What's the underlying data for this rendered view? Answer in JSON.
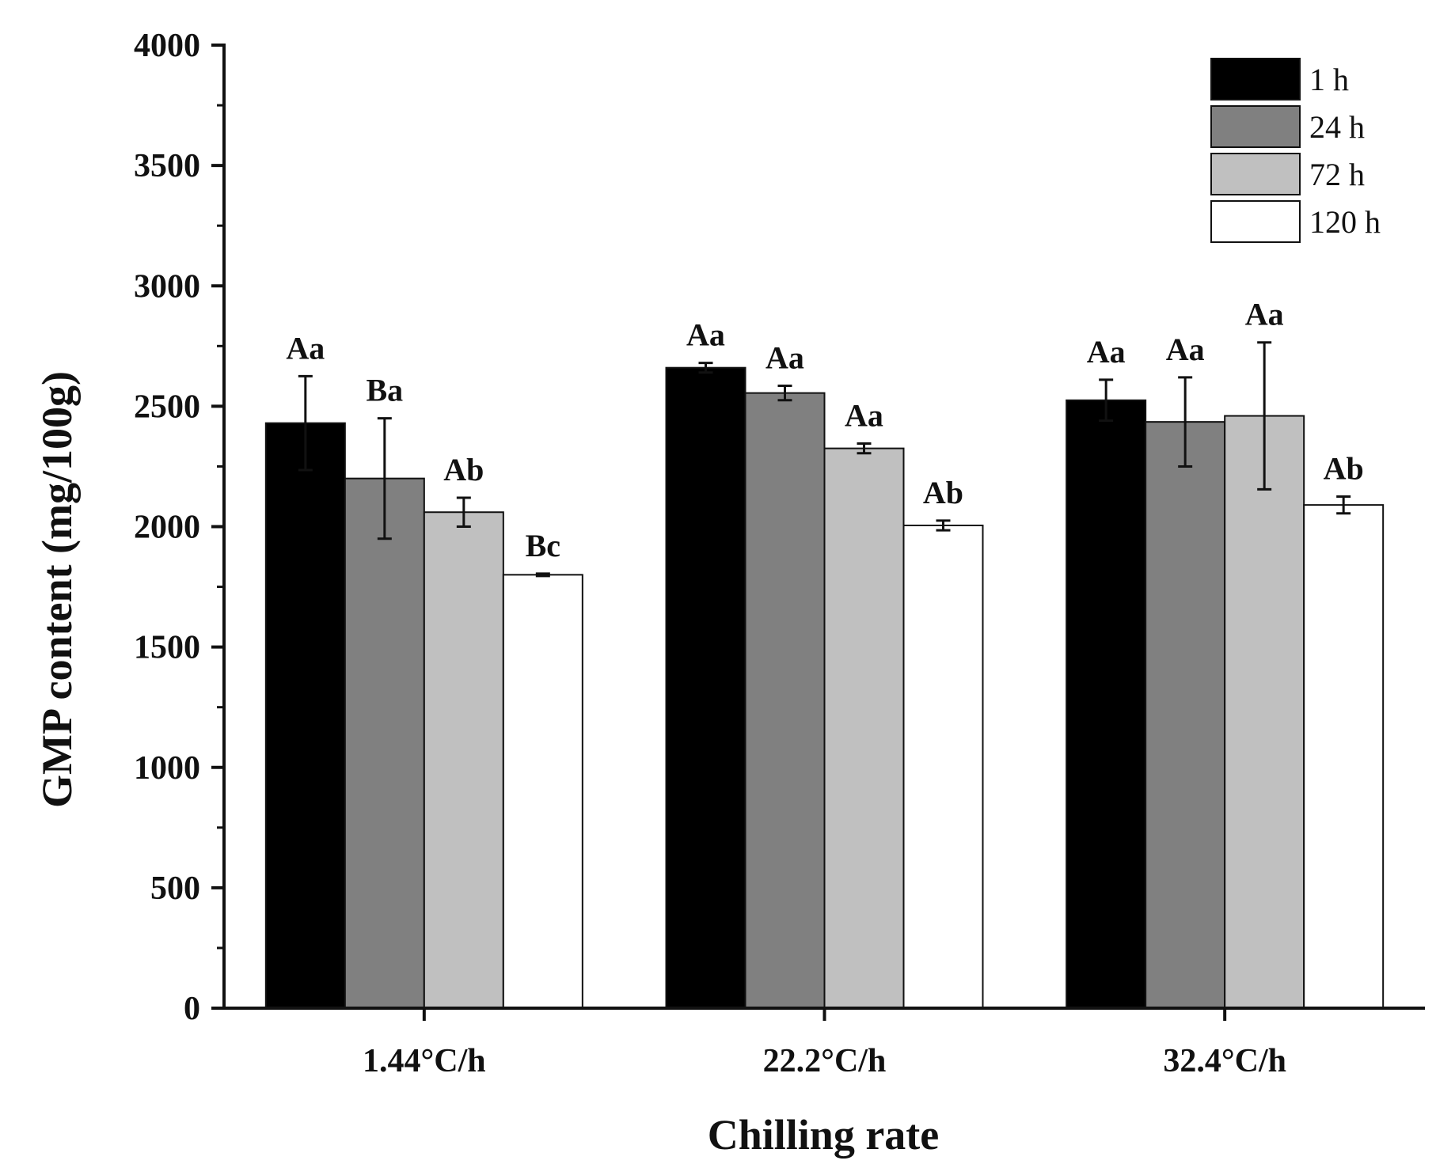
{
  "chart_data": {
    "type": "bar",
    "xlabel": "Chilling rate",
    "ylabel": "GMP content (mg/100g)",
    "ylim": [
      0,
      4000
    ],
    "yticks": [
      0,
      500,
      1000,
      1500,
      2000,
      2500,
      3000,
      3500,
      4000
    ],
    "categories": [
      "1.44°C/h",
      "22.2°C/h",
      "32.4°C/h"
    ],
    "legend_position": "top-right",
    "series": [
      {
        "name": "1 h",
        "color": "#000000",
        "values": [
          2430,
          2660,
          2525
        ],
        "errors": [
          195,
          20,
          85
        ],
        "labels": [
          "Aa",
          "Aa",
          "Aa"
        ]
      },
      {
        "name": "24 h",
        "color": "#808080",
        "values": [
          2200,
          2555,
          2435
        ],
        "errors": [
          250,
          30,
          185
        ],
        "labels": [
          "Ba",
          "Aa",
          "Aa"
        ]
      },
      {
        "name": "72 h",
        "color": "#c0c0c0",
        "values": [
          2060,
          2325,
          2460
        ],
        "errors": [
          60,
          20,
          305
        ],
        "labels": [
          "Ab",
          "Aa",
          "Aa"
        ]
      },
      {
        "name": "120 h",
        "color": "#ffffff",
        "values": [
          1800,
          2005,
          2090
        ],
        "errors": [
          5,
          20,
          35
        ],
        "labels": [
          "Bc",
          "Ab",
          "Ab"
        ]
      }
    ]
  }
}
